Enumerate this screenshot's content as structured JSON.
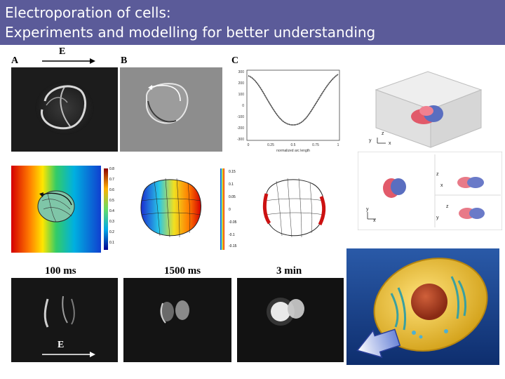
{
  "slide": {
    "title_line1": "Electroporation of cells:",
    "title_line2": "Experiments and modelling for better understanding"
  },
  "figure": {
    "panel_a": "A",
    "panel_b": "B",
    "panel_c": "C",
    "field_top": "E",
    "field_bottom": "E",
    "time_1": "100 ms",
    "time_2": "1500 ms",
    "time_3": "3 min"
  },
  "plot_c": {
    "yticks": [
      "300",
      "200",
      "100",
      "0",
      "-100",
      "-200",
      "-300"
    ],
    "xticks": [
      "0",
      "0.25",
      "0.5",
      "0.75",
      "1"
    ],
    "xlabel": "normalized arc length"
  },
  "colorbar_1": [
    "0.8",
    "0.7",
    "0.6",
    "0.5",
    "0.4",
    "0.3",
    "0.2",
    "0.1"
  ],
  "colorbar_2": [
    "0.15",
    "0.1",
    "0.05",
    "0",
    "-0.05",
    "-0.1",
    "-0.15"
  ],
  "axes_3d": {
    "z": "z",
    "y": "y",
    "x": "x"
  }
}
